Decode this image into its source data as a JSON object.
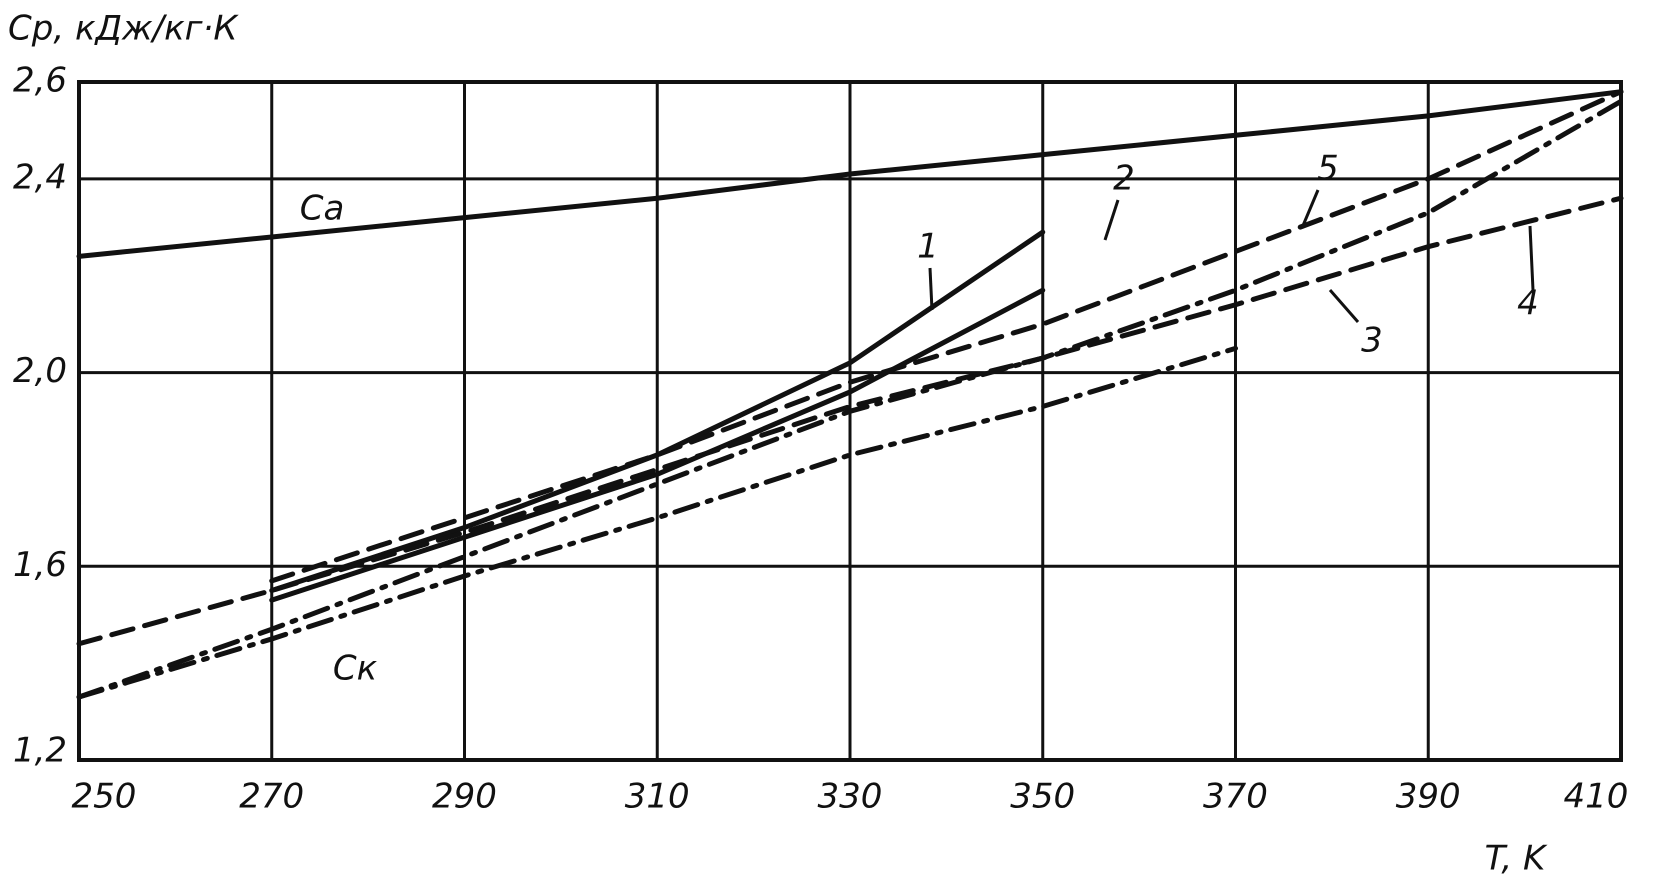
{
  "chart_data": {
    "type": "line",
    "y_label": "Cp, кДж/кг·К",
    "x_label": "T, K",
    "x": [
      250,
      270,
      290,
      310,
      330,
      350,
      370,
      390,
      410
    ],
    "series": [
      {
        "name": "Cа",
        "color": "#111111",
        "style": "solid",
        "values": [
          2.24,
          2.28,
          2.32,
          2.36,
          2.41,
          2.45,
          2.49,
          2.53,
          2.58
        ]
      },
      {
        "name": "1",
        "color": "#111111",
        "style": "solid",
        "values": [
          null,
          1.55,
          1.68,
          1.83,
          2.02,
          2.29,
          null,
          null,
          null
        ]
      },
      {
        "name": "2",
        "color": "#111111",
        "style": "solid",
        "values": [
          null,
          1.53,
          1.66,
          1.79,
          1.96,
          2.17,
          null,
          null,
          null
        ]
      },
      {
        "name": "5",
        "color": "#111111",
        "style": "dashed",
        "values": [
          null,
          1.57,
          1.7,
          1.83,
          1.98,
          2.1,
          2.25,
          2.4,
          2.58
        ]
      },
      {
        "name": "4",
        "color": "#111111",
        "style": "dashed",
        "values": [
          1.44,
          1.55,
          1.67,
          1.8,
          1.93,
          2.03,
          2.14,
          2.26,
          2.36
        ]
      },
      {
        "name": "3",
        "color": "#111111",
        "style": "dashdot",
        "values": [
          1.33,
          1.47,
          1.62,
          1.77,
          1.92,
          2.03,
          2.17,
          2.33,
          2.56
        ]
      },
      {
        "name": "Cк",
        "color": "#111111",
        "style": "dashdot",
        "values": [
          1.33,
          1.45,
          1.58,
          1.7,
          1.83,
          1.93,
          2.05,
          null,
          null
        ]
      }
    ],
    "xlim": [
      250,
      410
    ],
    "ylim": [
      1.2,
      2.6
    ],
    "xticks": [
      250,
      270,
      290,
      310,
      330,
      350,
      370,
      390,
      410
    ],
    "yticks": [
      {
        "value": 1.2,
        "label": "1,2"
      },
      {
        "value": 1.6,
        "label": "1,6"
      },
      {
        "value": 2.0,
        "label": "2,0"
      },
      {
        "value": 2.4,
        "label": "2,4"
      },
      {
        "value": 2.6,
        "label": "2,6"
      }
    ],
    "grid": true
  }
}
